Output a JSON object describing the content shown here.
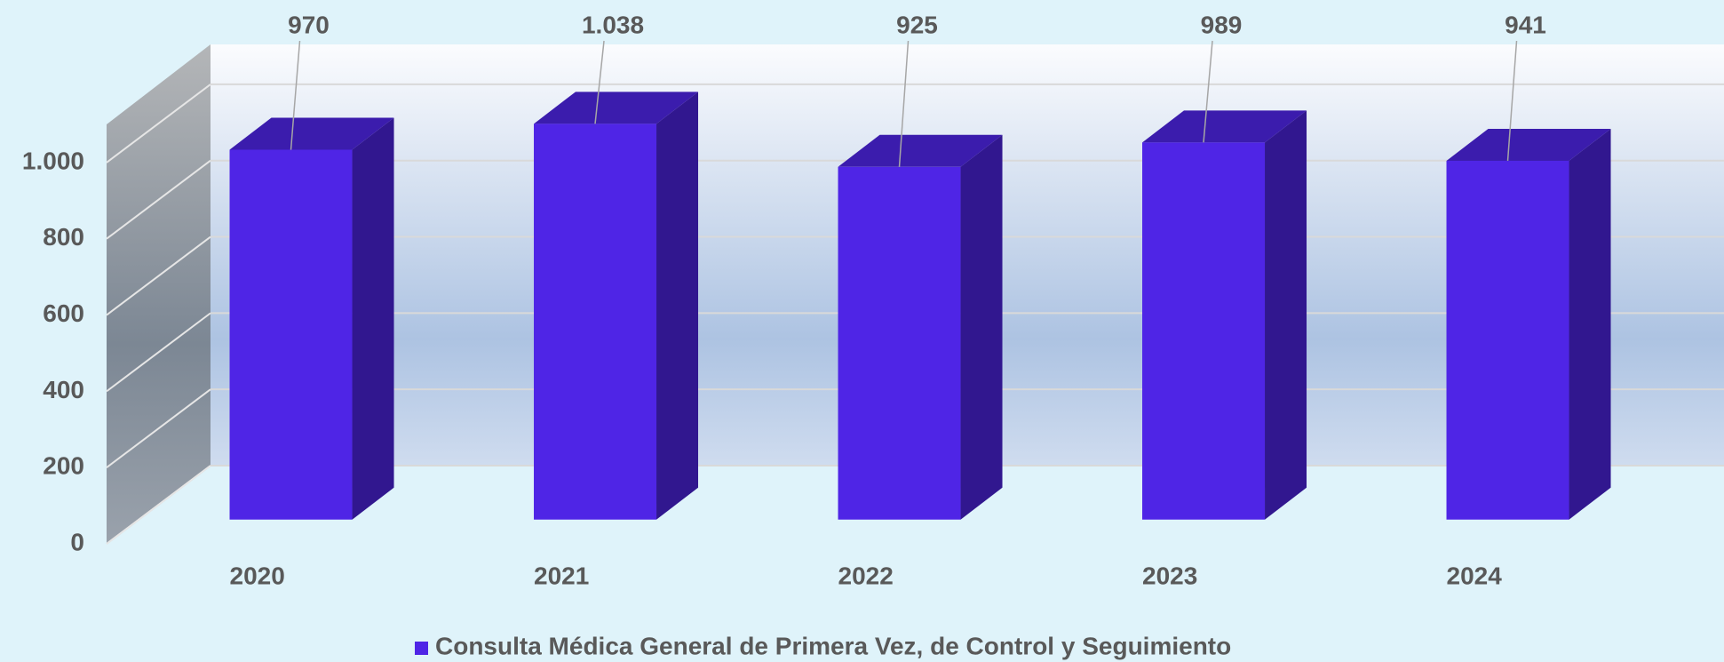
{
  "chart_data": {
    "type": "bar3d",
    "categories": [
      "2020",
      "2021",
      "2022",
      "2023",
      "2024"
    ],
    "series": [
      {
        "name": "Consulta Médica General de Primera Vez, de Control y Seguimiento",
        "color": "#4f25e6",
        "values": [
          970,
          1038,
          925,
          989,
          941
        ],
        "value_labels": [
          "970",
          "1.038",
          "925",
          "989",
          "941"
        ]
      }
    ],
    "ylim": [
      0,
      1100
    ],
    "yticks": [
      0,
      200,
      400,
      600,
      800,
      {
        "value": 1000,
        "label": "1.000"
      }
    ],
    "grid": true,
    "legend": "bottom"
  }
}
